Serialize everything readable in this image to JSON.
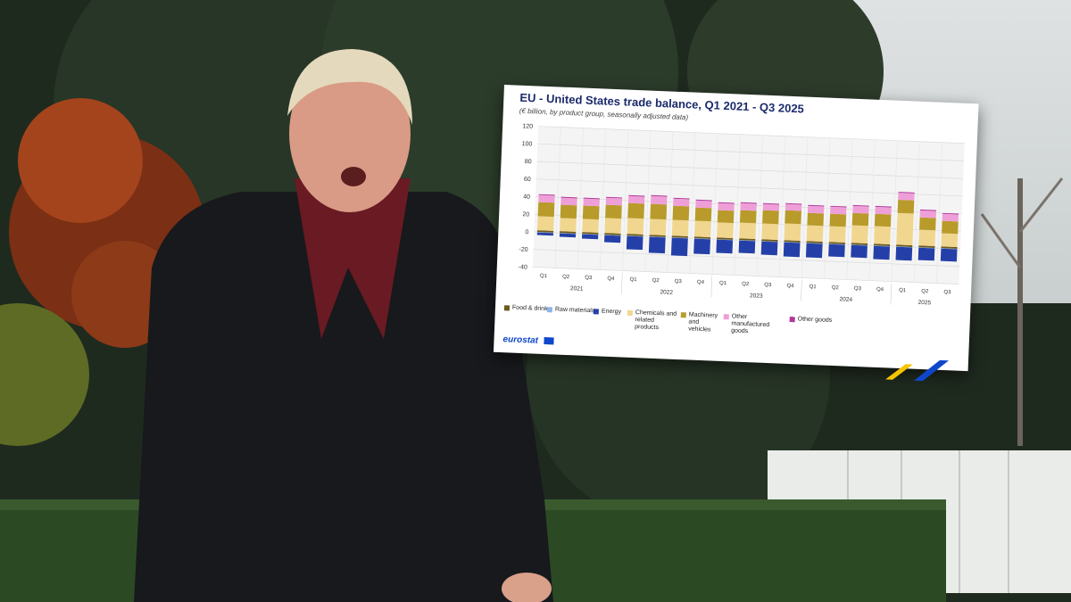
{
  "chart_data": {
    "type": "bar",
    "stacked": true,
    "title": "EU - United States trade balance, Q1 2021 - Q3 2025",
    "subtitle": "(€ billion, by product group, seasonally adjusted data)",
    "ylim": [
      -40,
      120
    ],
    "yticks": [
      -40,
      -20,
      0,
      20,
      40,
      60,
      80,
      100,
      120
    ],
    "grid": true,
    "categories": [
      "Q1",
      "Q2",
      "Q3",
      "Q4",
      "Q1",
      "Q2",
      "Q3",
      "Q4",
      "Q1",
      "Q2",
      "Q3",
      "Q4",
      "Q1",
      "Q2",
      "Q3",
      "Q4",
      "Q1",
      "Q2",
      "Q3"
    ],
    "year_labels": [
      "2021",
      "2022",
      "2023",
      "2024",
      "2025"
    ],
    "series": [
      {
        "name": "Food & drink",
        "color": "#6e5a1c",
        "values": [
          2,
          2,
          2,
          2,
          2,
          2,
          2,
          2,
          2,
          2,
          2,
          2,
          2,
          2,
          2,
          2,
          2,
          2,
          2
        ]
      },
      {
        "name": "Raw materials",
        "color": "#8fb5e8",
        "values": [
          -0.5,
          -0.5,
          -0.5,
          -0.5,
          -0.5,
          -0.5,
          -0.5,
          -0.5,
          -0.5,
          -0.5,
          -0.5,
          -0.5,
          -0.5,
          -0.5,
          -0.5,
          -0.5,
          -0.5,
          -0.5,
          -0.5
        ]
      },
      {
        "name": "Energy",
        "color": "#2440a8",
        "values": [
          -3,
          -4,
          -5,
          -8,
          -15,
          -18,
          -20,
          -17,
          -15,
          -14,
          -15,
          -16,
          -16,
          -14,
          -14,
          -15,
          -15,
          -14,
          -14
        ]
      },
      {
        "name": "Chemicals and related products",
        "color": "#f0d68f",
        "values": [
          16,
          15,
          15,
          17,
          18,
          18,
          18,
          18,
          17,
          18,
          18,
          19,
          18,
          18,
          20,
          20,
          36,
          18,
          15
        ]
      },
      {
        "name": "Machinery and vehicles",
        "color": "#b89b2a",
        "values": [
          16,
          15,
          15,
          15,
          17,
          17,
          16,
          15,
          14,
          14,
          15,
          15,
          14,
          14,
          14,
          14,
          15,
          14,
          14
        ]
      },
      {
        "name": "Other manufactured goods",
        "color": "#ef9fd8",
        "values": [
          8,
          8,
          8,
          8,
          8,
          9,
          8,
          8,
          8,
          8,
          7,
          7,
          8,
          8,
          8,
          8,
          8,
          8,
          8
        ]
      },
      {
        "name": "Other goods",
        "color": "#b0399a",
        "values": [
          1,
          1,
          1,
          1,
          1,
          1,
          1,
          1,
          1,
          1,
          1,
          1,
          1,
          1,
          1,
          1,
          1,
          1,
          1
        ]
      }
    ],
    "legend_position": "bottom"
  },
  "brand": {
    "name": "eurostat"
  }
}
